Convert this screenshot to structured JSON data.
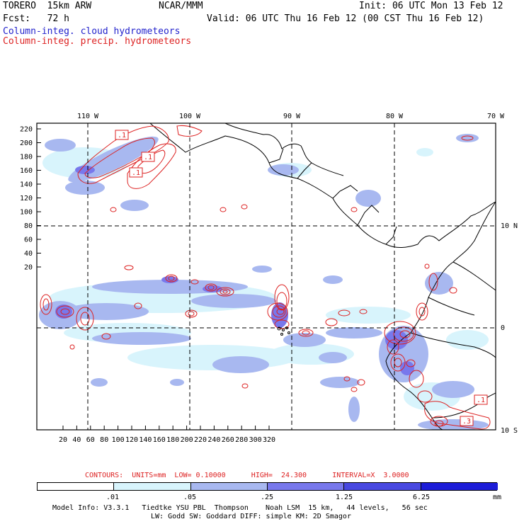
{
  "header": {
    "model": "TORERO  15km ARW",
    "org": "NCAR/MMM",
    "init": "Init: 06 UTC Mon 13 Feb 12",
    "fcst": "Fcst:   72 h",
    "valid": "Valid: 06 UTC Thu 16 Feb 12 (00 CST Thu 16 Feb 12)",
    "field1": "Column-integ. cloud hydrometeors",
    "field2": "Column-integ. precip. hydrometeors",
    "field1_color": "#2222cc",
    "field2_color": "#dd2222"
  },
  "map": {
    "lon_labels": [
      "110 W",
      "100 W",
      "90 W",
      "80 W",
      "70 W"
    ],
    "lat_labels": [
      "10 N",
      "0",
      "10 S"
    ],
    "y_ticks": [
      "220",
      "200",
      "180",
      "160",
      "140",
      "120",
      "100",
      "80",
      "60",
      "40",
      "20"
    ],
    "x_ticks": [
      "20",
      "40",
      "60",
      "80",
      "100",
      "120",
      "140",
      "160",
      "180",
      "200",
      "220",
      "240",
      "260",
      "280",
      "300",
      "320"
    ],
    "contour_boxes": [
      ".1",
      ".1",
      ".1",
      ".1",
      ".3"
    ]
  },
  "contours_info": {
    "text": "CONTOURS:  UNITS=mm  LOW= 0.10000      HIGH=  24.300      INTERVAL=X  3.0000",
    "color": "#dd2222"
  },
  "colorbar": {
    "labels": [
      ".01",
      ".05",
      ".25",
      "1.25",
      "6.25"
    ],
    "unit": "mm",
    "colors": [
      "#ffffff",
      "#d8f4fc",
      "#a8b8f0",
      "#7878ec",
      "#4848e0",
      "#1c1cd8"
    ]
  },
  "model_info": {
    "line1": "Model Info: V3.3.1   Tiedtke YSU PBL  Thompson    Noah LSM  15 km,   44 levels,   56 sec",
    "line2": "LW: Godd SW: Goddard DIFF: simple KM: 2D Smagor"
  }
}
